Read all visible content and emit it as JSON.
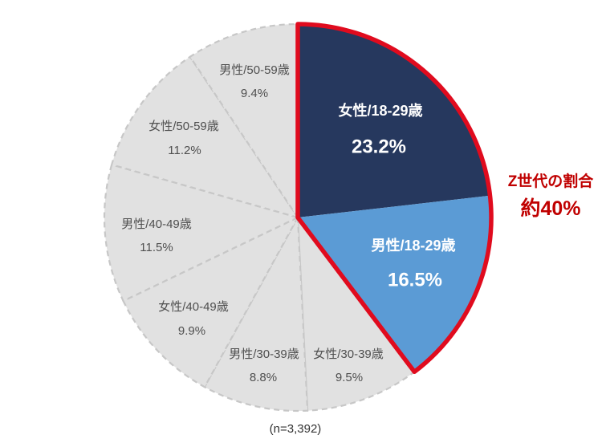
{
  "chart_data": {
    "type": "pie",
    "title": "",
    "caption": "(n=3,392)",
    "start_angle_deg": 0,
    "direction": "clockwise",
    "legend_position": "none",
    "annotation": {
      "line1": "Z世代の割合",
      "line2": "約40%",
      "color": "#C00000"
    },
    "highlight_outline_color": "#E00B1E",
    "slice_border_color": "#C7C7C7",
    "slice_gray_color": "#E1E1E1",
    "slices": [
      {
        "label": "女性/18-29歳",
        "value": 23.2,
        "display": "23.2%",
        "color": "#26385E",
        "text_color": "#FFFFFF",
        "emphasis": true
      },
      {
        "label": "男性/18-29歳",
        "value": 16.5,
        "display": "16.5%",
        "color": "#5B9BD5",
        "text_color": "#FFFFFF",
        "emphasis": true
      },
      {
        "label": "女性/30-39歳",
        "value": 9.5,
        "display": "9.5%",
        "color": "#E1E1E1",
        "text_color": "#4F4F4F",
        "emphasis": false
      },
      {
        "label": "男性/30-39歳",
        "value": 8.8,
        "display": "8.8%",
        "color": "#E1E1E1",
        "text_color": "#4F4F4F",
        "emphasis": false
      },
      {
        "label": "女性/40-49歳",
        "value": 9.9,
        "display": "9.9%",
        "color": "#E1E1E1",
        "text_color": "#4F4F4F",
        "emphasis": false
      },
      {
        "label": "男性/40-49歳",
        "value": 11.5,
        "display": "11.5%",
        "color": "#E1E1E1",
        "text_color": "#4F4F4F",
        "emphasis": false
      },
      {
        "label": "女性/50-59歳",
        "value": 11.2,
        "display": "11.2%",
        "color": "#E1E1E1",
        "text_color": "#4F4F4F",
        "emphasis": false
      },
      {
        "label": "男性/50-59歳",
        "value": 9.4,
        "display": "9.4%",
        "color": "#E1E1E1",
        "text_color": "#4F4F4F",
        "emphasis": false
      }
    ]
  }
}
